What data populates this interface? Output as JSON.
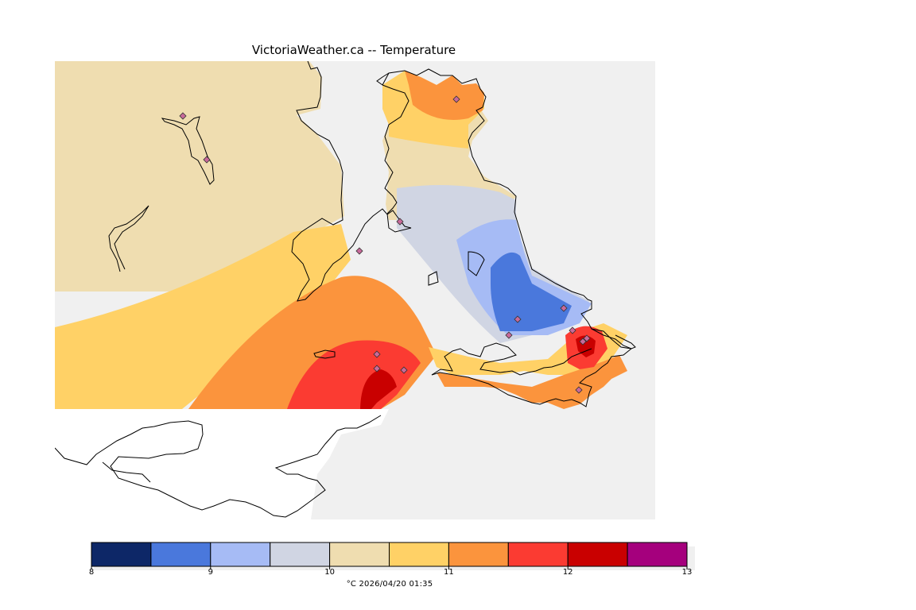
{
  "title": "VictoriaWeather.ca -- Temperature",
  "legend": {
    "min": 8,
    "max": 13,
    "step": 0.5,
    "colors": [
      "#0d2767",
      "#4a78dc",
      "#a6bbf5",
      "#d0d5e3",
      "#efddb0",
      "#ffd166",
      "#fb943d",
      "#fb3b32",
      "#c90000",
      "#a5007d"
    ],
    "tick_labels": [
      "8",
      "9",
      "10",
      "11",
      "12",
      "13"
    ],
    "unit": "°C",
    "timestamp": "2026/04/20 01:35",
    "caption": "°C  2026/04/20 01:35"
  },
  "map": {
    "ocean_color": "#f0f0f0",
    "mainland_color": "#ffffff",
    "station_color": "#c96a9a"
  }
}
